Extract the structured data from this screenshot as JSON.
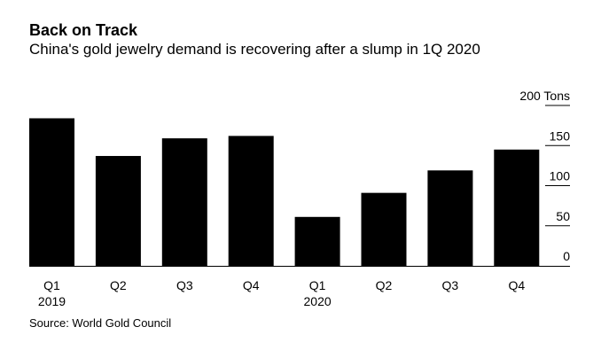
{
  "chart_data": {
    "type": "bar",
    "title": "Back on Track",
    "subtitle": "China's gold jewelry demand is recovering after a slump in 1Q 2020",
    "source": "Source: World Gold Council",
    "categories": [
      "Q1",
      "Q2",
      "Q3",
      "Q4",
      "Q1",
      "Q2",
      "Q3",
      "Q4"
    ],
    "year_labels": [
      "2019",
      "",
      "",
      "",
      "2020",
      "",
      "",
      ""
    ],
    "values": [
      184,
      137,
      159,
      162,
      61,
      91,
      119,
      145
    ],
    "ylim": [
      0,
      200
    ],
    "yticks": [
      0,
      50,
      100,
      150,
      200
    ],
    "ytick_labels": [
      "0",
      "50",
      "100",
      "150",
      "200 Tons"
    ],
    "ylabel": "Tons",
    "xlabel": "",
    "bar_color": "#000000",
    "axis_position": "right"
  }
}
